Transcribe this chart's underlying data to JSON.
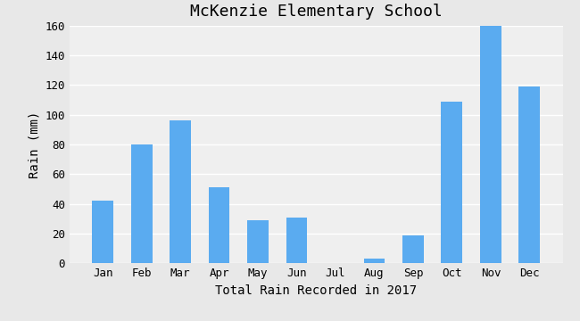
{
  "title": "McKenzie Elementary School",
  "xlabel": "Total Rain Recorded in 2017",
  "ylabel": "Rain (mm)",
  "months": [
    "Jan",
    "Feb",
    "Mar",
    "Apr",
    "May",
    "Jun",
    "Jul",
    "Aug",
    "Sep",
    "Oct",
    "Nov",
    "Dec"
  ],
  "values": [
    42,
    80,
    96,
    51,
    29,
    31,
    0,
    3,
    19,
    109,
    160,
    119
  ],
  "bar_color": "#5aabf0",
  "background_color": "#e8e8e8",
  "plot_bg_color": "#efefef",
  "ylim": [
    0,
    160
  ],
  "yticks": [
    0,
    20,
    40,
    60,
    80,
    100,
    120,
    140,
    160
  ],
  "grid_color": "#ffffff",
  "title_fontsize": 13,
  "label_fontsize": 10,
  "tick_fontsize": 9,
  "bar_width": 0.55
}
